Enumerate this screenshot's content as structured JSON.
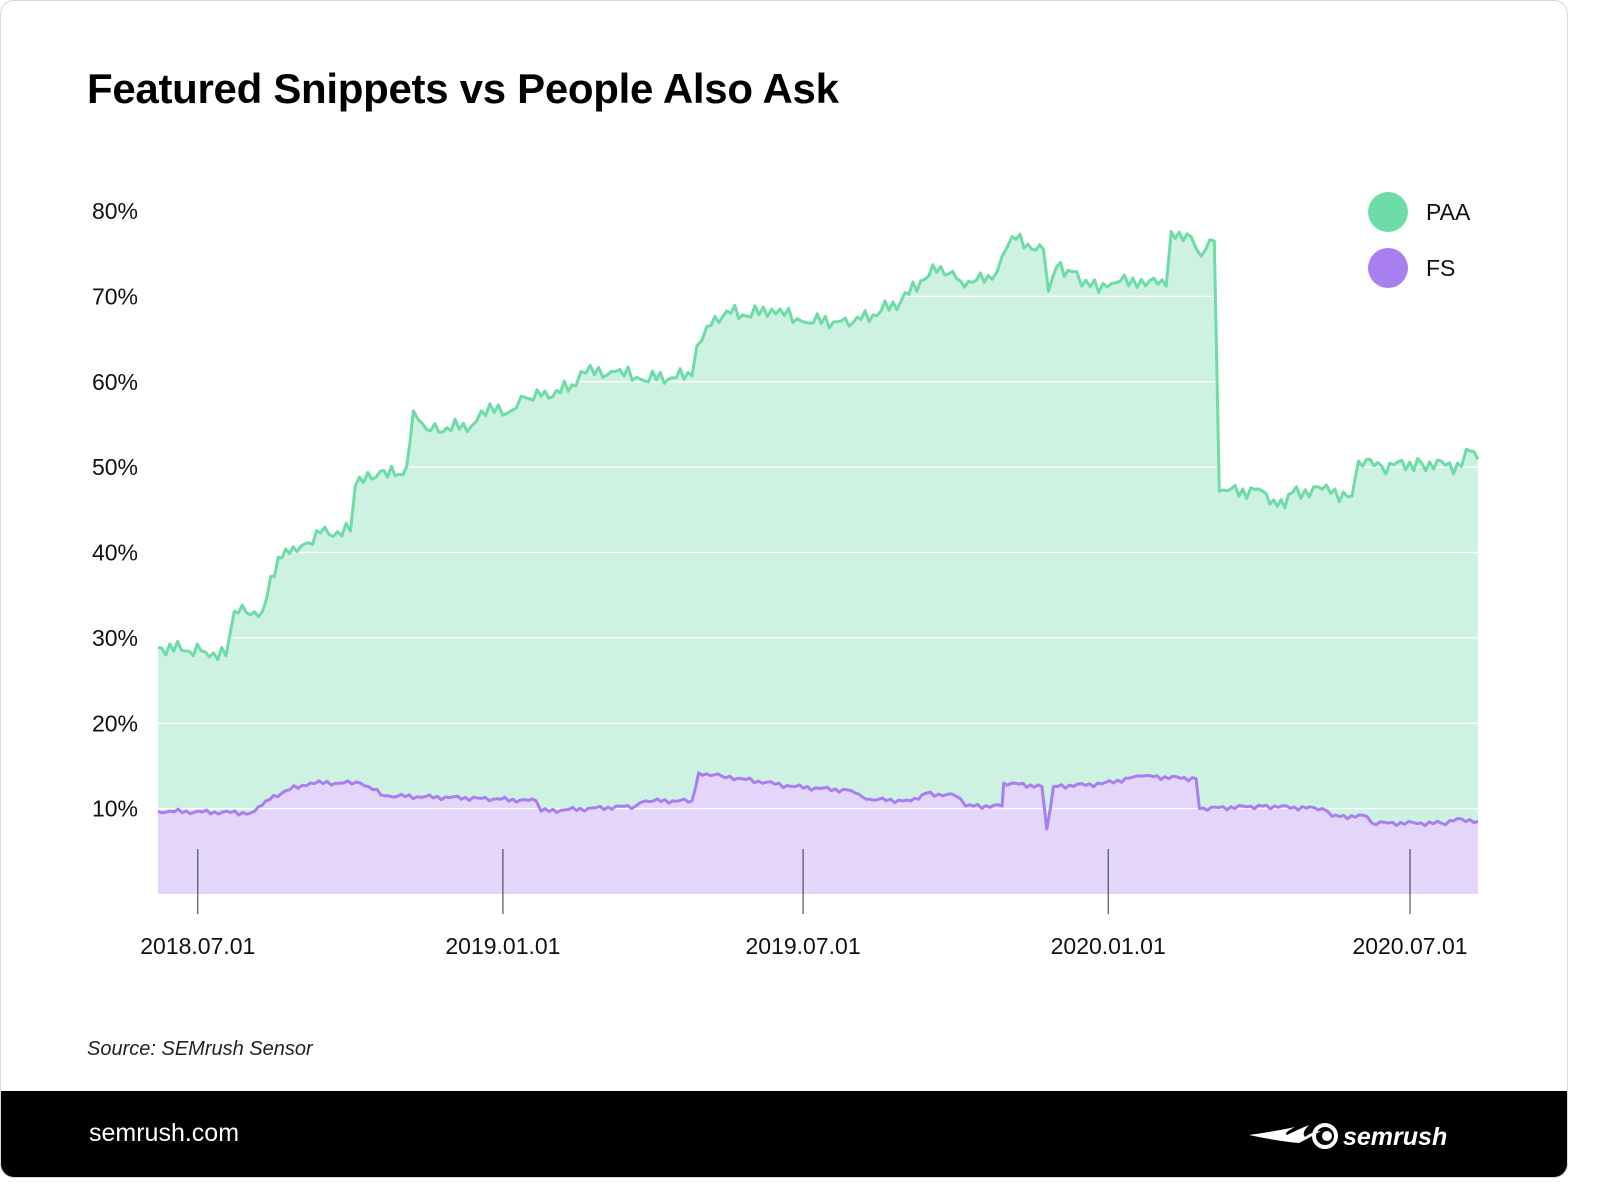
{
  "title": "Featured Snippets vs People Also Ask",
  "source": "Source: SEMrush Sensor",
  "footer": {
    "site": "semrush.com",
    "logo_text": "SEMRUSH"
  },
  "chart_data": {
    "type": "area",
    "title": "Featured Snippets vs People Also Ask",
    "xlabel": "",
    "ylabel": "",
    "x_ticks": [
      "2018.07.01",
      "2019.01.01",
      "2019.07.01",
      "2020.01.01",
      "2020.07.01"
    ],
    "y_ticks": [
      "10%",
      "20%",
      "30%",
      "40%",
      "50%",
      "60%",
      "70%",
      "80%"
    ],
    "ylim": [
      0,
      80
    ],
    "xlim": [
      "2018-06-07",
      "2020-08-11"
    ],
    "grid": true,
    "legend_position": "top-right",
    "series": [
      {
        "name": "PAA",
        "color": "#6edca6",
        "fill": "#cdf2e2",
        "points": [
          [
            "2018-06-07",
            28.9
          ],
          [
            "2018-07-03",
            28.5
          ],
          [
            "2018-07-18",
            27.9
          ],
          [
            "2018-07-23",
            33.1
          ],
          [
            "2018-08-09",
            33.1
          ],
          [
            "2018-08-14",
            37.2
          ],
          [
            "2018-08-23",
            40.4
          ],
          [
            "2018-09-01",
            40.7
          ],
          [
            "2018-09-13",
            42.3
          ],
          [
            "2018-10-01",
            42.5
          ],
          [
            "2018-10-04",
            47.8
          ],
          [
            "2018-10-19",
            49.5
          ],
          [
            "2018-10-28",
            49.0
          ],
          [
            "2018-11-04",
            50.1
          ],
          [
            "2018-11-08",
            56.6
          ],
          [
            "2018-11-16",
            54.4
          ],
          [
            "2018-12-13",
            54.8
          ],
          [
            "2018-12-19",
            56.6
          ],
          [
            "2019-01-06",
            56.6
          ],
          [
            "2019-01-12",
            58.3
          ],
          [
            "2019-01-24",
            58.3
          ],
          [
            "2019-02-14",
            59.5
          ],
          [
            "2019-02-20",
            61.0
          ],
          [
            "2019-03-10",
            61.2
          ],
          [
            "2019-03-25",
            60.3
          ],
          [
            "2019-04-25",
            60.7
          ],
          [
            "2019-04-28",
            64.2
          ],
          [
            "2019-05-04",
            66.5
          ],
          [
            "2019-05-16",
            68.3
          ],
          [
            "2019-05-28",
            67.7
          ],
          [
            "2019-06-12",
            68.5
          ],
          [
            "2019-06-30",
            67.1
          ],
          [
            "2019-07-24",
            67.1
          ],
          [
            "2019-08-05",
            67.3
          ],
          [
            "2019-08-17",
            68.3
          ],
          [
            "2019-08-29",
            69.4
          ],
          [
            "2019-09-10",
            71.8
          ],
          [
            "2019-09-22",
            73.5
          ],
          [
            "2019-10-04",
            71.8
          ],
          [
            "2019-10-23",
            72.0
          ],
          [
            "2019-10-29",
            74.7
          ],
          [
            "2019-11-04",
            77.0
          ],
          [
            "2019-11-16",
            75.5
          ],
          [
            "2019-11-23",
            75.5
          ],
          [
            "2019-11-26",
            70.6
          ],
          [
            "2019-12-01",
            73.5
          ],
          [
            "2019-12-10",
            72.9
          ],
          [
            "2019-12-16",
            71.2
          ],
          [
            "2020-01-03",
            71.5
          ],
          [
            "2020-01-21",
            72.0
          ],
          [
            "2020-02-05",
            71.2
          ],
          [
            "2020-02-08",
            77.6
          ],
          [
            "2020-02-20",
            77.0
          ],
          [
            "2020-02-26",
            74.7
          ],
          [
            "2020-03-05",
            76.5
          ],
          [
            "2020-03-08",
            47.2
          ],
          [
            "2020-04-03",
            47.2
          ],
          [
            "2020-04-12",
            45.4
          ],
          [
            "2020-04-21",
            47.0
          ],
          [
            "2020-05-09",
            47.4
          ],
          [
            "2020-05-27",
            46.6
          ],
          [
            "2020-05-31",
            50.7
          ],
          [
            "2020-06-14",
            50.1
          ],
          [
            "2020-07-08",
            50.5
          ],
          [
            "2020-08-01",
            50.1
          ],
          [
            "2020-08-04",
            52.1
          ],
          [
            "2020-08-11",
            50.9
          ]
        ]
      },
      {
        "name": "FS",
        "color": "#a97ff0",
        "fill": "#e3d6fa",
        "points": [
          [
            "2018-06-07",
            9.7
          ],
          [
            "2018-08-02",
            9.5
          ],
          [
            "2018-08-11",
            10.9
          ],
          [
            "2018-08-23",
            12.1
          ],
          [
            "2018-09-07",
            13.0
          ],
          [
            "2018-10-07",
            13.0
          ],
          [
            "2018-10-22",
            11.5
          ],
          [
            "2018-12-19",
            11.2
          ],
          [
            "2019-01-21",
            10.9
          ],
          [
            "2019-01-24",
            9.7
          ],
          [
            "2019-03-22",
            10.3
          ],
          [
            "2019-03-28",
            10.9
          ],
          [
            "2019-04-25",
            10.9
          ],
          [
            "2019-04-29",
            14.2
          ],
          [
            "2019-05-13",
            13.8
          ],
          [
            "2019-05-25",
            13.5
          ],
          [
            "2019-06-24",
            12.6
          ],
          [
            "2019-07-30",
            12.1
          ],
          [
            "2019-08-08",
            11.1
          ],
          [
            "2019-09-04",
            10.9
          ],
          [
            "2019-09-13",
            11.8
          ],
          [
            "2019-10-01",
            11.5
          ],
          [
            "2019-10-07",
            10.3
          ],
          [
            "2019-10-29",
            10.3
          ],
          [
            "2019-10-30",
            13.0
          ],
          [
            "2019-11-22",
            12.6
          ],
          [
            "2019-11-25",
            7.6
          ],
          [
            "2019-11-29",
            12.6
          ],
          [
            "2019-12-28",
            12.9
          ],
          [
            "2020-01-21",
            13.8
          ],
          [
            "2020-02-23",
            13.5
          ],
          [
            "2020-02-25",
            10.0
          ],
          [
            "2020-04-03",
            10.3
          ],
          [
            "2020-05-09",
            10.0
          ],
          [
            "2020-05-15",
            9.1
          ],
          [
            "2020-06-05",
            9.1
          ],
          [
            "2020-06-08",
            8.3
          ],
          [
            "2020-07-20",
            8.3
          ],
          [
            "2020-08-01",
            8.8
          ],
          [
            "2020-08-11",
            8.5
          ]
        ]
      }
    ]
  }
}
